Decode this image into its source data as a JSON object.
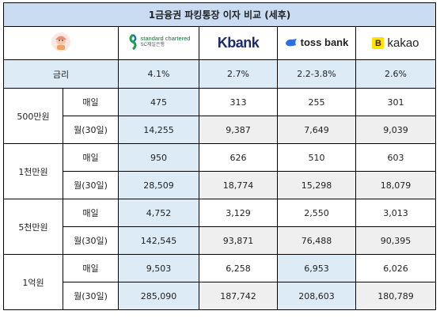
{
  "title": "1금융권 파킹통장 이자 비교 (세후)",
  "banks": [
    {
      "name": "standard chartered",
      "sub": "SC제일은행",
      "icon": "standard-chartered-logo"
    },
    {
      "name": "Kbank",
      "icon": "kbank-logo"
    },
    {
      "name": "toss bank",
      "icon": "toss-bank-logo"
    },
    {
      "name": "kakao",
      "icon": "kakao-bank-logo"
    }
  ],
  "rate_label": "금리",
  "rates": [
    "4.1%",
    "2.7%",
    "2.2-3.8%",
    "2.6%"
  ],
  "daily_label": "매일",
  "monthly_label": "월(30일)",
  "groups": [
    {
      "amount": "500만원",
      "daily": [
        "475",
        "313",
        "255",
        "301"
      ],
      "monthly": [
        "14,255",
        "9,387",
        "7,649",
        "9,039"
      ]
    },
    {
      "amount": "1천만원",
      "daily": [
        "950",
        "626",
        "510",
        "603"
      ],
      "monthly": [
        "28,509",
        "18,774",
        "15,298",
        "18,079"
      ]
    },
    {
      "amount": "5천만원",
      "daily": [
        "4,752",
        "3,129",
        "2,550",
        "3,013"
      ],
      "monthly": [
        "142,545",
        "93,871",
        "76,488",
        "90,395"
      ]
    },
    {
      "amount": "1억원",
      "daily": [
        "9,503",
        "6,258",
        "6,953",
        "6,026"
      ],
      "monthly": [
        "285,090",
        "187,742",
        "208,603",
        "180,789"
      ]
    }
  ],
  "colors": {
    "header": "#c9dcf2",
    "highlight": "#ddebf7",
    "gray": "#efefef",
    "toss": "#2f6fe4",
    "kakao": "#ffe300",
    "sc_green": "#1a6e3b"
  }
}
